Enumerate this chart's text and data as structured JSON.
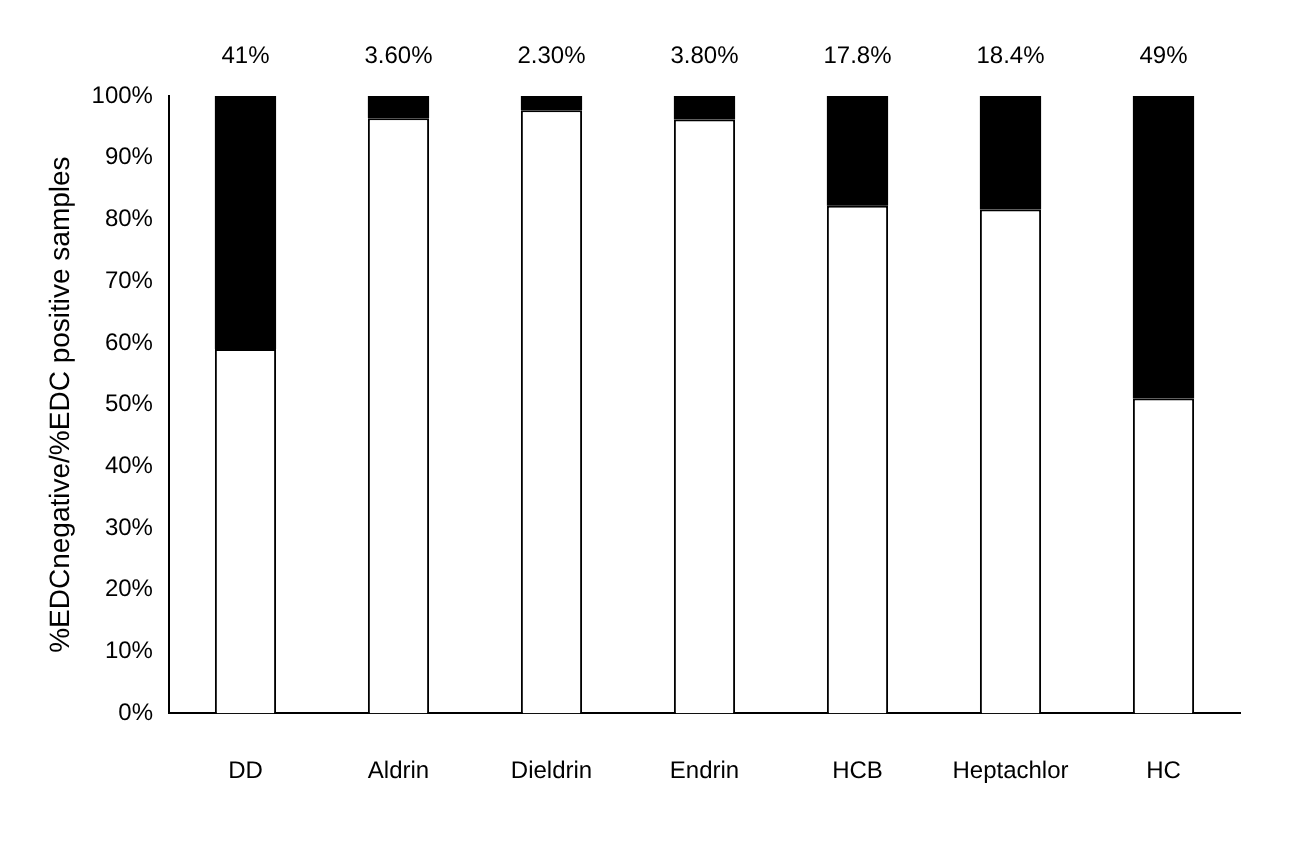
{
  "chart_data": {
    "type": "bar",
    "stacked": true,
    "ylabel": "%EDCnegative/%EDC positive samples",
    "categories": [
      "DD",
      "Aldrin",
      "Dieldrin",
      "Endrin",
      "HCB",
      "Heptachlor",
      "HC"
    ],
    "series": [
      {
        "color": "#ffffff",
        "values": [
          59,
          96.4,
          97.7,
          96.2,
          82.2,
          81.6,
          51
        ]
      },
      {
        "color": "#000000",
        "values": [
          41,
          3.6,
          2.3,
          3.8,
          17.8,
          18.4,
          49
        ],
        "value_labels": [
          "41%",
          "3.60%",
          "2.30%",
          "3.80%",
          "17.8%",
          "18.4%",
          "49%"
        ]
      }
    ],
    "ylim": [
      0,
      100
    ],
    "yticks": [
      {
        "value": 0,
        "label": "0%"
      },
      {
        "value": 10,
        "label": "10%"
      },
      {
        "value": 20,
        "label": "20%"
      },
      {
        "value": 30,
        "label": "30%"
      },
      {
        "value": 40,
        "label": "40%"
      },
      {
        "value": 50,
        "label": "50%"
      },
      {
        "value": 60,
        "label": "60%"
      },
      {
        "value": 70,
        "label": "70%"
      },
      {
        "value": 80,
        "label": "80%"
      },
      {
        "value": 90,
        "label": "90%"
      },
      {
        "value": 100,
        "label": "100%"
      }
    ],
    "grid": false,
    "legend": false
  }
}
